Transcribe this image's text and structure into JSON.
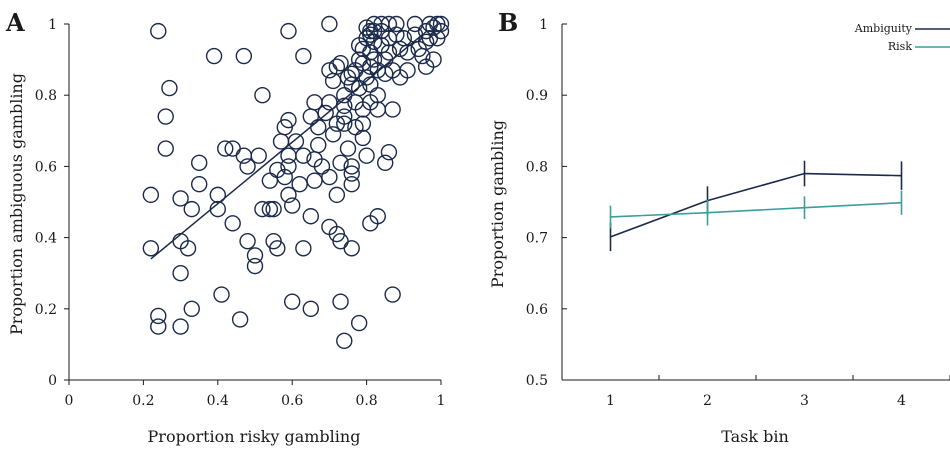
{
  "colors": {
    "ambiguity": "#1b2a4a",
    "risk": "#3a9e9c",
    "axis": "#1a1a1a"
  },
  "chart_data": [
    {
      "panel": "A",
      "type": "scatter",
      "xlabel": "Proportion risky gambling",
      "ylabel": "Proportion ambiguous gambling",
      "xlim": [
        0,
        1
      ],
      "ylim": [
        0,
        1
      ],
      "xticks": [
        0,
        0.2,
        0.4,
        0.6,
        0.8,
        1
      ],
      "yticks": [
        0,
        0.2,
        0.4,
        0.6,
        0.8,
        1
      ],
      "xtick_labels": [
        "0",
        "0.2",
        "0.4",
        "0.6",
        "0.8",
        "1"
      ],
      "ytick_labels": [
        "0",
        "0.2",
        "0.4",
        "0.6",
        "0.8",
        "1"
      ],
      "marker": "open-circle",
      "trend_line": {
        "x": [
          0.22,
          0.95
        ],
        "y": [
          0.34,
          0.97
        ]
      },
      "points": [
        [
          0.24,
          0.98
        ],
        [
          0.27,
          0.82
        ],
        [
          0.26,
          0.74
        ],
        [
          0.26,
          0.65
        ],
        [
          0.39,
          0.91
        ],
        [
          0.47,
          0.91
        ],
        [
          0.52,
          0.8
        ],
        [
          0.59,
          0.98
        ],
        [
          0.63,
          0.91
        ],
        [
          0.7,
          1.0
        ],
        [
          0.22,
          0.52
        ],
        [
          0.22,
          0.37
        ],
        [
          0.3,
          0.39
        ],
        [
          0.32,
          0.37
        ],
        [
          0.3,
          0.51
        ],
        [
          0.33,
          0.48
        ],
        [
          0.35,
          0.61
        ],
        [
          0.35,
          0.55
        ],
        [
          0.4,
          0.52
        ],
        [
          0.4,
          0.48
        ],
        [
          0.42,
          0.65
        ],
        [
          0.44,
          0.65
        ],
        [
          0.47,
          0.63
        ],
        [
          0.48,
          0.6
        ],
        [
          0.44,
          0.44
        ],
        [
          0.48,
          0.39
        ],
        [
          0.51,
          0.63
        ],
        [
          0.5,
          0.35
        ],
        [
          0.5,
          0.32
        ],
        [
          0.52,
          0.48
        ],
        [
          0.54,
          0.48
        ],
        [
          0.55,
          0.48
        ],
        [
          0.54,
          0.56
        ],
        [
          0.55,
          0.39
        ],
        [
          0.56,
          0.37
        ],
        [
          0.56,
          0.59
        ],
        [
          0.57,
          0.67
        ],
        [
          0.58,
          0.71
        ],
        [
          0.59,
          0.73
        ],
        [
          0.59,
          0.63
        ],
        [
          0.59,
          0.6
        ],
        [
          0.59,
          0.52
        ],
        [
          0.58,
          0.57
        ],
        [
          0.6,
          0.49
        ],
        [
          0.61,
          0.67
        ],
        [
          0.62,
          0.55
        ],
        [
          0.63,
          0.63
        ],
        [
          0.63,
          0.37
        ],
        [
          0.65,
          0.46
        ],
        [
          0.65,
          0.74
        ],
        [
          0.66,
          0.78
        ],
        [
          0.67,
          0.66
        ],
        [
          0.67,
          0.71
        ],
        [
          0.66,
          0.62
        ],
        [
          0.7,
          0.78
        ],
        [
          0.7,
          0.87
        ],
        [
          0.7,
          0.57
        ],
        [
          0.7,
          0.43
        ],
        [
          0.71,
          0.84
        ],
        [
          0.72,
          0.88
        ],
        [
          0.73,
          0.89
        ],
        [
          0.72,
          0.72
        ],
        [
          0.72,
          0.41
        ],
        [
          0.72,
          0.52
        ],
        [
          0.73,
          0.39
        ],
        [
          0.73,
          0.61
        ],
        [
          0.74,
          0.77
        ],
        [
          0.74,
          0.8
        ],
        [
          0.74,
          0.72
        ],
        [
          0.74,
          0.74
        ],
        [
          0.75,
          0.65
        ],
        [
          0.75,
          0.85
        ],
        [
          0.76,
          0.83
        ],
        [
          0.76,
          0.86
        ],
        [
          0.76,
          0.58
        ],
        [
          0.76,
          0.6
        ],
        [
          0.76,
          0.55
        ],
        [
          0.76,
          0.37
        ],
        [
          0.77,
          0.71
        ],
        [
          0.77,
          0.78
        ],
        [
          0.77,
          0.87
        ],
        [
          0.78,
          0.9
        ],
        [
          0.78,
          0.94
        ],
        [
          0.78,
          0.82
        ],
        [
          0.79,
          0.76
        ],
        [
          0.79,
          0.72
        ],
        [
          0.79,
          0.68
        ],
        [
          0.79,
          0.89
        ],
        [
          0.79,
          0.93
        ],
        [
          0.8,
          0.96
        ],
        [
          0.8,
          0.99
        ],
        [
          0.8,
          0.85
        ],
        [
          0.8,
          0.63
        ],
        [
          0.81,
          0.98
        ],
        [
          0.81,
          0.97
        ],
        [
          0.81,
          0.92
        ],
        [
          0.81,
          0.88
        ],
        [
          0.81,
          0.83
        ],
        [
          0.81,
          0.78
        ],
        [
          0.81,
          0.44
        ],
        [
          0.82,
          1.0
        ],
        [
          0.82,
          0.98
        ],
        [
          0.82,
          0.95
        ],
        [
          0.82,
          0.9
        ],
        [
          0.83,
          0.87
        ],
        [
          0.83,
          0.8
        ],
        [
          0.83,
          0.76
        ],
        [
          0.83,
          0.46
        ],
        [
          0.84,
          1.0
        ],
        [
          0.84,
          0.98
        ],
        [
          0.84,
          0.94
        ],
        [
          0.85,
          0.9
        ],
        [
          0.85,
          0.86
        ],
        [
          0.86,
          1.0
        ],
        [
          0.86,
          0.96
        ],
        [
          0.86,
          0.92
        ],
        [
          0.87,
          0.87
        ],
        [
          0.87,
          0.76
        ],
        [
          0.88,
          1.0
        ],
        [
          0.88,
          0.97
        ],
        [
          0.89,
          0.93
        ],
        [
          0.89,
          0.85
        ],
        [
          0.9,
          0.96
        ],
        [
          0.91,
          0.92
        ],
        [
          0.91,
          0.87
        ],
        [
          0.93,
          1.0
        ],
        [
          0.93,
          0.97
        ],
        [
          0.94,
          0.93
        ],
        [
          0.95,
          0.91
        ],
        [
          0.96,
          0.98
        ],
        [
          0.96,
          0.95
        ],
        [
          0.96,
          0.88
        ],
        [
          0.97,
          1.0
        ],
        [
          0.97,
          0.96
        ],
        [
          0.98,
          0.9
        ],
        [
          0.98,
          0.99
        ],
        [
          0.99,
          1.0
        ],
        [
          1.0,
          1.0
        ],
        [
          1.0,
          0.98
        ],
        [
          0.99,
          0.96
        ],
        [
          0.6,
          0.22
        ],
        [
          0.65,
          0.2
        ],
        [
          0.73,
          0.22
        ],
        [
          0.74,
          0.11
        ],
        [
          0.78,
          0.16
        ],
        [
          0.87,
          0.24
        ],
        [
          0.41,
          0.24
        ],
        [
          0.46,
          0.17
        ],
        [
          0.33,
          0.2
        ],
        [
          0.24,
          0.18
        ],
        [
          0.24,
          0.15
        ],
        [
          0.3,
          0.15
        ],
        [
          0.3,
          0.3
        ],
        [
          0.85,
          0.61
        ],
        [
          0.86,
          0.64
        ],
        [
          0.66,
          0.56
        ],
        [
          0.68,
          0.6
        ],
        [
          0.69,
          0.75
        ],
        [
          0.71,
          0.69
        ]
      ]
    },
    {
      "panel": "B",
      "type": "line",
      "xlabel": "Task bin",
      "ylabel": "Proportion gambling",
      "xlim": [
        0.5,
        4.5
      ],
      "ylim": [
        0.5,
        1.0
      ],
      "x": [
        1,
        2,
        3,
        4
      ],
      "xtick_labels": [
        "1",
        "2",
        "3",
        "4"
      ],
      "yticks": [
        0.5,
        0.6,
        0.7,
        0.8,
        0.9,
        1.0
      ],
      "ytick_labels": [
        "0.5",
        "0.6",
        "0.7",
        "0.8",
        "0.9",
        "1"
      ],
      "legend_placement": "top-right",
      "series": [
        {
          "name": "Ambiguity",
          "color_key": "ambiguity",
          "values": [
            0.701,
            0.752,
            0.79,
            0.787
          ],
          "errors": [
            0.02,
            0.02,
            0.018,
            0.02
          ]
        },
        {
          "name": "Risk",
          "color_key": "risk",
          "values": [
            0.729,
            0.735,
            0.742,
            0.749
          ],
          "errors": [
            0.016,
            0.018,
            0.016,
            0.017
          ]
        }
      ]
    }
  ]
}
